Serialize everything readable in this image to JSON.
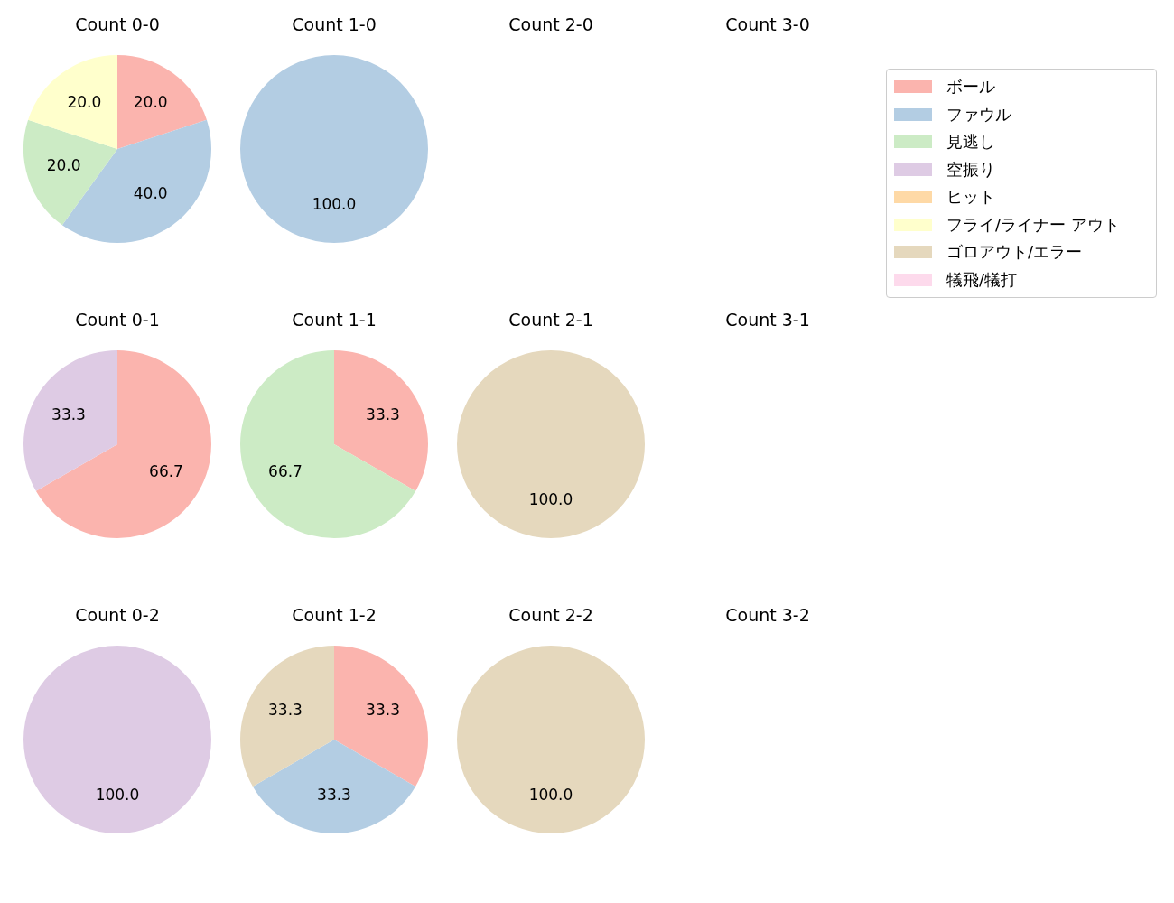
{
  "chart_data": [
    {
      "type": "pie",
      "title": "Count 0-0",
      "legend": "right",
      "categories": [
        "ボール",
        "ファウル",
        "見逃し",
        "空振り",
        "ヒット",
        "フライ/ライナー アウト",
        "ゴロアウト/エラー",
        "犠飛/犠打"
      ],
      "values": [
        20,
        40,
        20,
        0,
        0,
        20,
        0,
        0
      ],
      "value_labels": [
        "20.0",
        "40.0",
        "20.0",
        null,
        null,
        "20.0",
        null,
        null
      ],
      "colors": [
        "#fbb4ae",
        "#b3cde3",
        "#ccebc5",
        "#decbe4",
        "#fed9a6",
        "#ffffcc",
        "#e5d8bd",
        "#fddaec"
      ]
    },
    {
      "type": "pie",
      "title": "Count 1-0",
      "categories": [
        null,
        null,
        null,
        null,
        null,
        null,
        null,
        null
      ],
      "values": [
        0,
        100,
        0,
        0,
        0,
        0,
        0,
        0
      ],
      "value_labels": [
        null,
        "100.0",
        null,
        null,
        null,
        null,
        null,
        null
      ],
      "colors": [
        "#fbb4ae",
        "#b3cde3",
        "#ccebc5",
        "#decbe4",
        "#fed9a6",
        "#ffffcc",
        "#e5d8bd",
        "#fddaec"
      ]
    },
    {
      "type": "other",
      "title": "Count 2-0"
    },
    {
      "type": "other",
      "title": "Count 3-0"
    },
    {
      "type": "pie",
      "title": "Count 0-1",
      "categories": [
        null,
        null,
        null,
        null,
        null,
        null,
        null,
        null
      ],
      "values": [
        66.7,
        0,
        0,
        33.3,
        0,
        0,
        0,
        0
      ],
      "value_labels": [
        "66.7",
        null,
        null,
        "33.3",
        null,
        null,
        null,
        null
      ],
      "colors": [
        "#fbb4ae",
        "#b3cde3",
        "#ccebc5",
        "#decbe4",
        "#fed9a6",
        "#ffffcc",
        "#e5d8bd",
        "#fddaec"
      ]
    },
    {
      "type": "pie",
      "title": "Count 1-1",
      "categories": [
        null,
        null,
        null,
        null,
        null,
        null,
        null,
        null
      ],
      "values": [
        33.3,
        0,
        66.7,
        0,
        0,
        0,
        0,
        0
      ],
      "value_labels": [
        "33.3",
        null,
        "66.7",
        null,
        null,
        null,
        null,
        null
      ],
      "colors": [
        "#fbb4ae",
        "#b3cde3",
        "#ccebc5",
        "#decbe4",
        "#fed9a6",
        "#ffffcc",
        "#e5d8bd",
        "#fddaec"
      ]
    },
    {
      "type": "pie",
      "title": "Count 2-1",
      "categories": [
        null,
        null,
        null,
        null,
        null,
        null,
        null,
        null
      ],
      "values": [
        0,
        0,
        0,
        0,
        0,
        0,
        100,
        0
      ],
      "value_labels": [
        null,
        null,
        null,
        null,
        null,
        null,
        "100.0",
        null
      ],
      "colors": [
        "#fbb4ae",
        "#b3cde3",
        "#ccebc5",
        "#decbe4",
        "#fed9a6",
        "#ffffcc",
        "#e5d8bd",
        "#fddaec"
      ]
    },
    {
      "type": "other",
      "title": "Count 3-1"
    },
    {
      "type": "pie",
      "title": "Count 0-2",
      "categories": [
        null,
        null,
        null,
        null,
        null,
        null,
        null,
        null
      ],
      "values": [
        0,
        0,
        0,
        100,
        0,
        0,
        0,
        0
      ],
      "value_labels": [
        null,
        null,
        null,
        "100.0",
        null,
        null,
        null,
        null
      ],
      "colors": [
        "#fbb4ae",
        "#b3cde3",
        "#ccebc5",
        "#decbe4",
        "#fed9a6",
        "#ffffcc",
        "#e5d8bd",
        "#fddaec"
      ]
    },
    {
      "type": "pie",
      "title": "Count 1-2",
      "categories": [
        null,
        null,
        null,
        null,
        null,
        null,
        null,
        null
      ],
      "values": [
        33.3,
        33.3,
        0,
        0,
        0,
        0,
        33.3,
        0
      ],
      "value_labels": [
        "33.3",
        "33.3",
        null,
        null,
        null,
        null,
        "33.3",
        null
      ],
      "colors": [
        "#fbb4ae",
        "#b3cde3",
        "#ccebc5",
        "#decbe4",
        "#fed9a6",
        "#ffffcc",
        "#e5d8bd",
        "#fddaec"
      ]
    },
    {
      "type": "pie",
      "title": "Count 2-2",
      "categories": [
        null,
        null,
        null,
        null,
        null,
        null,
        null,
        null
      ],
      "values": [
        0,
        0,
        0,
        0,
        0,
        0,
        100,
        0
      ],
      "value_labels": [
        null,
        null,
        null,
        null,
        null,
        null,
        "100.0",
        null
      ],
      "colors": [
        "#fbb4ae",
        "#b3cde3",
        "#ccebc5",
        "#decbe4",
        "#fed9a6",
        "#ffffcc",
        "#e5d8bd",
        "#fddaec"
      ]
    },
    {
      "type": "other",
      "title": "Count 3-2"
    }
  ]
}
